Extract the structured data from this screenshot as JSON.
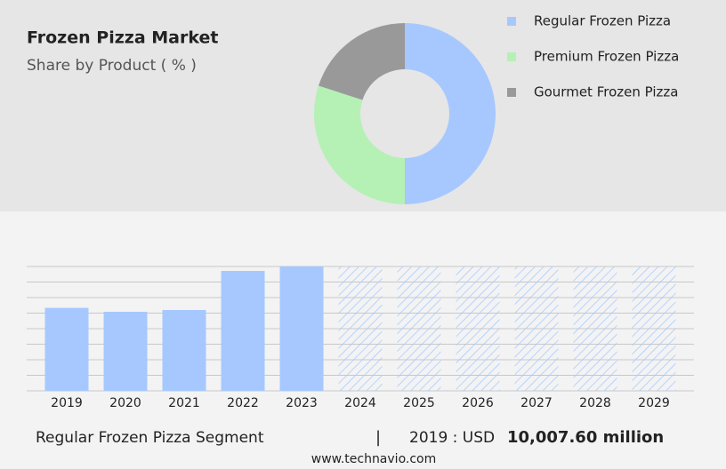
{
  "chart_data": [
    {
      "type": "pie",
      "donut": true,
      "title": "Frozen Pizza Market",
      "subtitle": "Share by Product ( % )",
      "categories": [
        "Regular Frozen Pizza",
        "Premium Frozen Pizza",
        "Gourmet Frozen Pizza"
      ],
      "values": [
        50,
        30,
        20
      ],
      "colors": [
        "#a6c8ff",
        "#b5f0b5",
        "#999999"
      ],
      "legend": "right"
    },
    {
      "type": "bar",
      "categories": [
        "2019",
        "2020",
        "2021",
        "2022",
        "2023",
        "2024",
        "2025",
        "2026",
        "2027",
        "2028",
        "2029"
      ],
      "values": [
        10007.6,
        9536,
        9750,
        14464,
        15000,
        null,
        null,
        null,
        null,
        null,
        null
      ],
      "color": "#a6c8ff",
      "ylim": [
        0,
        15000
      ],
      "yticks": [
        0,
        1875,
        3750,
        5625,
        7500,
        9375,
        11250,
        13125,
        15000
      ],
      "ytick_labels": false,
      "grid": true,
      "highlight": {
        "segment": "Regular Frozen Pizza Segment",
        "separator": "|",
        "period": "2019 : USD",
        "value": "10,007.60 million"
      },
      "source": "www.technavio.com"
    }
  ]
}
